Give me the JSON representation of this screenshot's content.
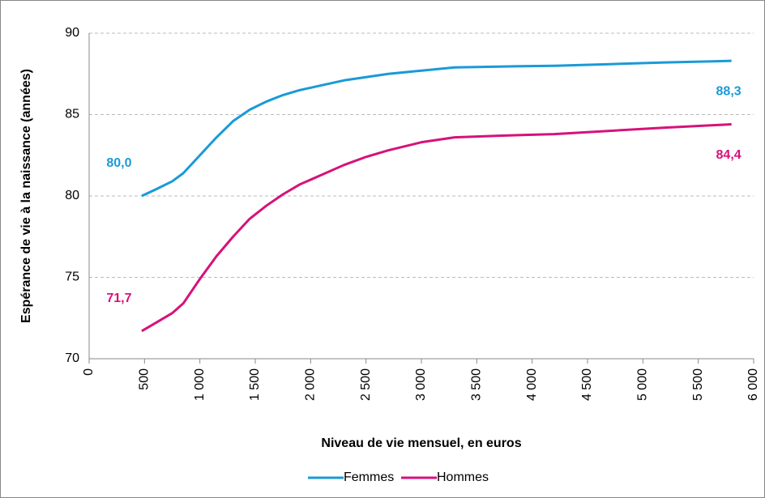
{
  "chart_data": {
    "type": "line",
    "ylabel": "Espérance de vie à la naissance (années)",
    "xlabel": "Niveau de vie mensuel, en euros",
    "x": [
      475,
      600,
      750,
      850,
      1000,
      1150,
      1300,
      1450,
      1600,
      1750,
      1900,
      2100,
      2300,
      2500,
      2700,
      3000,
      3300,
      3700,
      4200,
      4700,
      5200,
      5800
    ],
    "series": [
      {
        "name": "Femmes",
        "color": "#1a9ad6",
        "values": [
          80.0,
          80.4,
          80.9,
          81.4,
          82.5,
          83.6,
          84.6,
          85.3,
          85.8,
          86.2,
          86.5,
          86.8,
          87.1,
          87.3,
          87.5,
          87.7,
          87.9,
          87.95,
          88.0,
          88.1,
          88.2,
          88.3
        ],
        "value_labels": [
          "80,0",
          null,
          null,
          null,
          null,
          null,
          null,
          null,
          null,
          null,
          null,
          null,
          null,
          null,
          null,
          null,
          null,
          null,
          null,
          null,
          null,
          "88,3"
        ]
      },
      {
        "name": "Hommes",
        "color": "#d6127a",
        "values": [
          71.7,
          72.2,
          72.8,
          73.4,
          74.9,
          76.3,
          77.5,
          78.6,
          79.4,
          80.1,
          80.7,
          81.3,
          81.9,
          82.4,
          82.8,
          83.3,
          83.6,
          83.7,
          83.8,
          84.0,
          84.2,
          84.4
        ],
        "value_labels": [
          "71,7",
          null,
          null,
          null,
          null,
          null,
          null,
          null,
          null,
          null,
          null,
          null,
          null,
          null,
          null,
          null,
          null,
          null,
          null,
          null,
          null,
          "84,4"
        ]
      }
    ],
    "xlim": [
      0,
      6000
    ],
    "xticks": [
      0,
      500,
      {
        "value": 1000,
        "label": "1 000"
      },
      {
        "value": 1500,
        "label": "1 500"
      },
      {
        "value": 2000,
        "label": "2 000"
      },
      {
        "value": 2500,
        "label": "2 500"
      },
      {
        "value": 3000,
        "label": "3 000"
      },
      {
        "value": 3500,
        "label": "3 500"
      },
      {
        "value": 4000,
        "label": "4 000"
      },
      {
        "value": 4500,
        "label": "4 500"
      },
      {
        "value": 5000,
        "label": "5 000"
      },
      {
        "value": 5500,
        "label": "5 500"
      },
      {
        "value": 6000,
        "label": "6 000"
      }
    ],
    "ylim": [
      70,
      90
    ],
    "yticks": [
      70,
      75,
      80,
      85,
      90
    ],
    "grid": true,
    "legend": "bottom"
  }
}
